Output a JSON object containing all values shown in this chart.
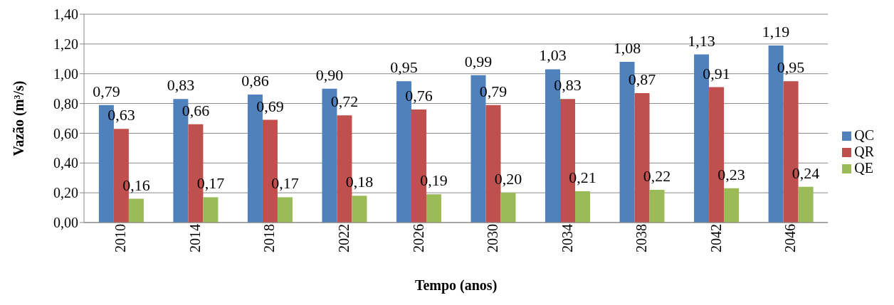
{
  "chart_data": {
    "type": "bar",
    "xlabel": "Tempo (anos)",
    "ylabel": "Vazão (m³/s)",
    "categories": [
      "2010",
      "2014",
      "2018",
      "2022",
      "2026",
      "2030",
      "2034",
      "2038",
      "2042",
      "2046"
    ],
    "series": [
      {
        "name": "QC",
        "color": "#4f81bd",
        "values": [
          0.79,
          0.83,
          0.86,
          0.9,
          0.95,
          0.99,
          1.03,
          1.08,
          1.13,
          1.19
        ],
        "value_labels": [
          "0,79",
          "0,83",
          "0,86",
          "0,90",
          "0,95",
          "0,99",
          "1,03",
          "1,08",
          "1,13",
          "1,19"
        ]
      },
      {
        "name": "QR",
        "color": "#c0504d",
        "values": [
          0.63,
          0.66,
          0.69,
          0.72,
          0.76,
          0.79,
          0.83,
          0.87,
          0.91,
          0.95
        ],
        "value_labels": [
          "0,63",
          "0,66",
          "0,69",
          "0,72",
          "0,76",
          "0,79",
          "0,83",
          "0,87",
          "0,91",
          "0,95"
        ]
      },
      {
        "name": "QE",
        "color": "#9bbb59",
        "values": [
          0.16,
          0.17,
          0.17,
          0.18,
          0.19,
          0.2,
          0.21,
          0.22,
          0.23,
          0.24
        ],
        "value_labels": [
          "0,16",
          "0,17",
          "0,17",
          "0,18",
          "0,19",
          "0,20",
          "0,21",
          "0,22",
          "0,23",
          "0,24"
        ]
      }
    ],
    "ylim": [
      0,
      1.4
    ],
    "yticks": [
      {
        "value": 0,
        "label": "0,00"
      },
      {
        "value": 0.2,
        "label": "0,20"
      },
      {
        "value": 0.4,
        "label": "0,40"
      },
      {
        "value": 0.6,
        "label": "0,60"
      },
      {
        "value": 0.8,
        "label": "0,80"
      },
      {
        "value": 1.0,
        "label": "1,00"
      },
      {
        "value": 1.2,
        "label": "1,20"
      },
      {
        "value": 1.4,
        "label": "1,40"
      }
    ],
    "grid": "y",
    "legend": "right"
  }
}
